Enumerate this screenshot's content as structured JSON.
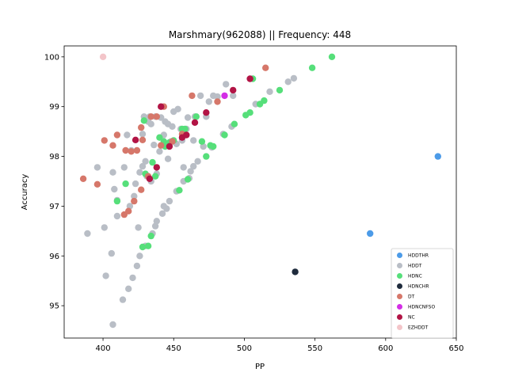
{
  "chart_data": {
    "type": "scatter",
    "title": "Marshmary(962088) || Frequency: 448",
    "xlabel": "PP",
    "ylabel": "Accuracy",
    "xlim": [
      372.5,
      650
    ],
    "ylim": [
      94.35,
      100.22
    ],
    "x_ticks": [
      "400",
      "450",
      "500",
      "550",
      "600",
      "650"
    ],
    "y_ticks": [
      "95",
      "96",
      "97",
      "98",
      "99",
      "100"
    ],
    "legend_position": "lower right",
    "grid": false,
    "series": [
      {
        "name": "HDDTHR",
        "color": "#4c9be8",
        "points": [
          [
            637,
            98.0
          ],
          [
            589,
            96.45
          ]
        ]
      },
      {
        "name": "HDDT",
        "color": "#b9bec6",
        "points": [
          [
            389,
            96.45
          ],
          [
            396,
            97.78
          ],
          [
            401,
            96.57
          ],
          [
            402,
            95.6
          ],
          [
            406,
            96.05
          ],
          [
            407,
            94.62
          ],
          [
            407,
            97.68
          ],
          [
            408,
            97.34
          ],
          [
            410,
            97.12
          ],
          [
            410,
            96.8
          ],
          [
            414,
            95.12
          ],
          [
            415,
            97.78
          ],
          [
            417,
            98.43
          ],
          [
            418,
            95.34
          ],
          [
            419,
            97.0
          ],
          [
            420,
            98.12
          ],
          [
            421,
            95.56
          ],
          [
            422,
            97.2
          ],
          [
            423,
            97.45
          ],
          [
            424,
            95.8
          ],
          [
            425,
            96.57
          ],
          [
            426,
            96.0
          ],
          [
            426,
            97.68
          ],
          [
            428,
            97.8
          ],
          [
            428,
            98.45
          ],
          [
            429,
            98.8
          ],
          [
            430,
            97.9
          ],
          [
            430,
            96.2
          ],
          [
            431,
            97.6
          ],
          [
            432,
            98.7
          ],
          [
            433,
            98.8
          ],
          [
            434,
            98.65
          ],
          [
            434,
            97.5
          ],
          [
            435,
            96.45
          ],
          [
            436,
            98.23
          ],
          [
            437,
            96.6
          ],
          [
            437,
            98.8
          ],
          [
            438,
            96.7
          ],
          [
            438,
            97.65
          ],
          [
            440,
            98.1
          ],
          [
            441,
            98.78
          ],
          [
            442,
            96.85
          ],
          [
            443,
            97.0
          ],
          [
            443,
            98.43
          ],
          [
            444,
            98.7
          ],
          [
            445,
            96.95
          ],
          [
            446,
            98.65
          ],
          [
            447,
            97.1
          ],
          [
            448,
            98.3
          ],
          [
            449,
            98.6
          ],
          [
            450,
            98.9
          ],
          [
            452,
            97.3
          ],
          [
            453,
            98.95
          ],
          [
            455,
            98.55
          ],
          [
            456,
            98.32
          ],
          [
            457,
            97.78
          ],
          [
            457,
            97.5
          ],
          [
            459,
            98.55
          ],
          [
            460,
            98.78
          ],
          [
            461,
            97.56
          ],
          [
            462,
            97.7
          ],
          [
            464,
            97.8
          ],
          [
            465,
            98.8
          ],
          [
            467,
            97.9
          ],
          [
            469,
            99.22
          ],
          [
            471,
            98.2
          ],
          [
            473,
            98.8
          ],
          [
            475,
            99.1
          ],
          [
            477,
            98.18
          ],
          [
            478,
            99.22
          ],
          [
            481,
            99.2
          ],
          [
            485,
            98.45
          ],
          [
            487,
            99.45
          ],
          [
            491,
            98.6
          ],
          [
            492,
            99.22
          ],
          [
            508,
            99.05
          ],
          [
            518,
            99.3
          ],
          [
            531,
            99.5
          ],
          [
            535,
            99.57
          ],
          [
            464,
            98.32
          ],
          [
            452,
            98.25
          ],
          [
            446,
            97.95
          ]
        ]
      },
      {
        "name": "HDNC",
        "color": "#56df7a",
        "points": [
          [
            410,
            97.1
          ],
          [
            416,
            97.45
          ],
          [
            428,
            96.18
          ],
          [
            429,
            98.72
          ],
          [
            430,
            97.65
          ],
          [
            432,
            96.2
          ],
          [
            434,
            96.4
          ],
          [
            435,
            97.88
          ],
          [
            437,
            97.6
          ],
          [
            440,
            98.38
          ],
          [
            443,
            98.3
          ],
          [
            444,
            98.2
          ],
          [
            447,
            98.28
          ],
          [
            450,
            98.32
          ],
          [
            454,
            97.32
          ],
          [
            456,
            98.55
          ],
          [
            458,
            98.55
          ],
          [
            460,
            97.54
          ],
          [
            466,
            98.8
          ],
          [
            470,
            98.3
          ],
          [
            473,
            98.0
          ],
          [
            476,
            98.22
          ],
          [
            478,
            98.2
          ],
          [
            486,
            98.43
          ],
          [
            493,
            98.65
          ],
          [
            501,
            98.83
          ],
          [
            504,
            98.88
          ],
          [
            506,
            99.56
          ],
          [
            511,
            99.05
          ],
          [
            514,
            99.12
          ],
          [
            525,
            99.33
          ],
          [
            548,
            99.78
          ],
          [
            562,
            100.0
          ]
        ]
      },
      {
        "name": "HDNCHR",
        "color": "#1e2b3c",
        "points": [
          [
            536,
            95.68
          ]
        ]
      },
      {
        "name": "DT",
        "color": "#d6776a",
        "points": [
          [
            386,
            97.55
          ],
          [
            396,
            97.44
          ],
          [
            401,
            98.32
          ],
          [
            407,
            98.22
          ],
          [
            410,
            98.43
          ],
          [
            415,
            96.83
          ],
          [
            416,
            98.12
          ],
          [
            418,
            96.9
          ],
          [
            420,
            98.1
          ],
          [
            422,
            97.1
          ],
          [
            424,
            98.12
          ],
          [
            427,
            97.33
          ],
          [
            427,
            98.58
          ],
          [
            428,
            98.33
          ],
          [
            432,
            97.6
          ],
          [
            434,
            98.8
          ],
          [
            438,
            98.8
          ],
          [
            441,
            98.22
          ],
          [
            443,
            99.0
          ],
          [
            449,
            98.3
          ],
          [
            456,
            98.45
          ],
          [
            463,
            99.22
          ],
          [
            481,
            99.1
          ],
          [
            515,
            99.78
          ]
        ]
      },
      {
        "name": "HDNCNFSO",
        "color": "#d32ee6",
        "points": [
          [
            486,
            99.22
          ]
        ]
      },
      {
        "name": "NC",
        "color": "#b21445",
        "points": [
          [
            423,
            98.33
          ],
          [
            433,
            97.55
          ],
          [
            438,
            97.78
          ],
          [
            441,
            99.0
          ],
          [
            447,
            98.2
          ],
          [
            456,
            98.38
          ],
          [
            459,
            98.43
          ],
          [
            465,
            98.68
          ],
          [
            473,
            98.88
          ],
          [
            492,
            99.33
          ],
          [
            504,
            99.56
          ]
        ]
      },
      {
        "name": "EZHDDT",
        "color": "#f3c5c9",
        "points": [
          [
            400,
            100.0
          ]
        ]
      }
    ]
  }
}
